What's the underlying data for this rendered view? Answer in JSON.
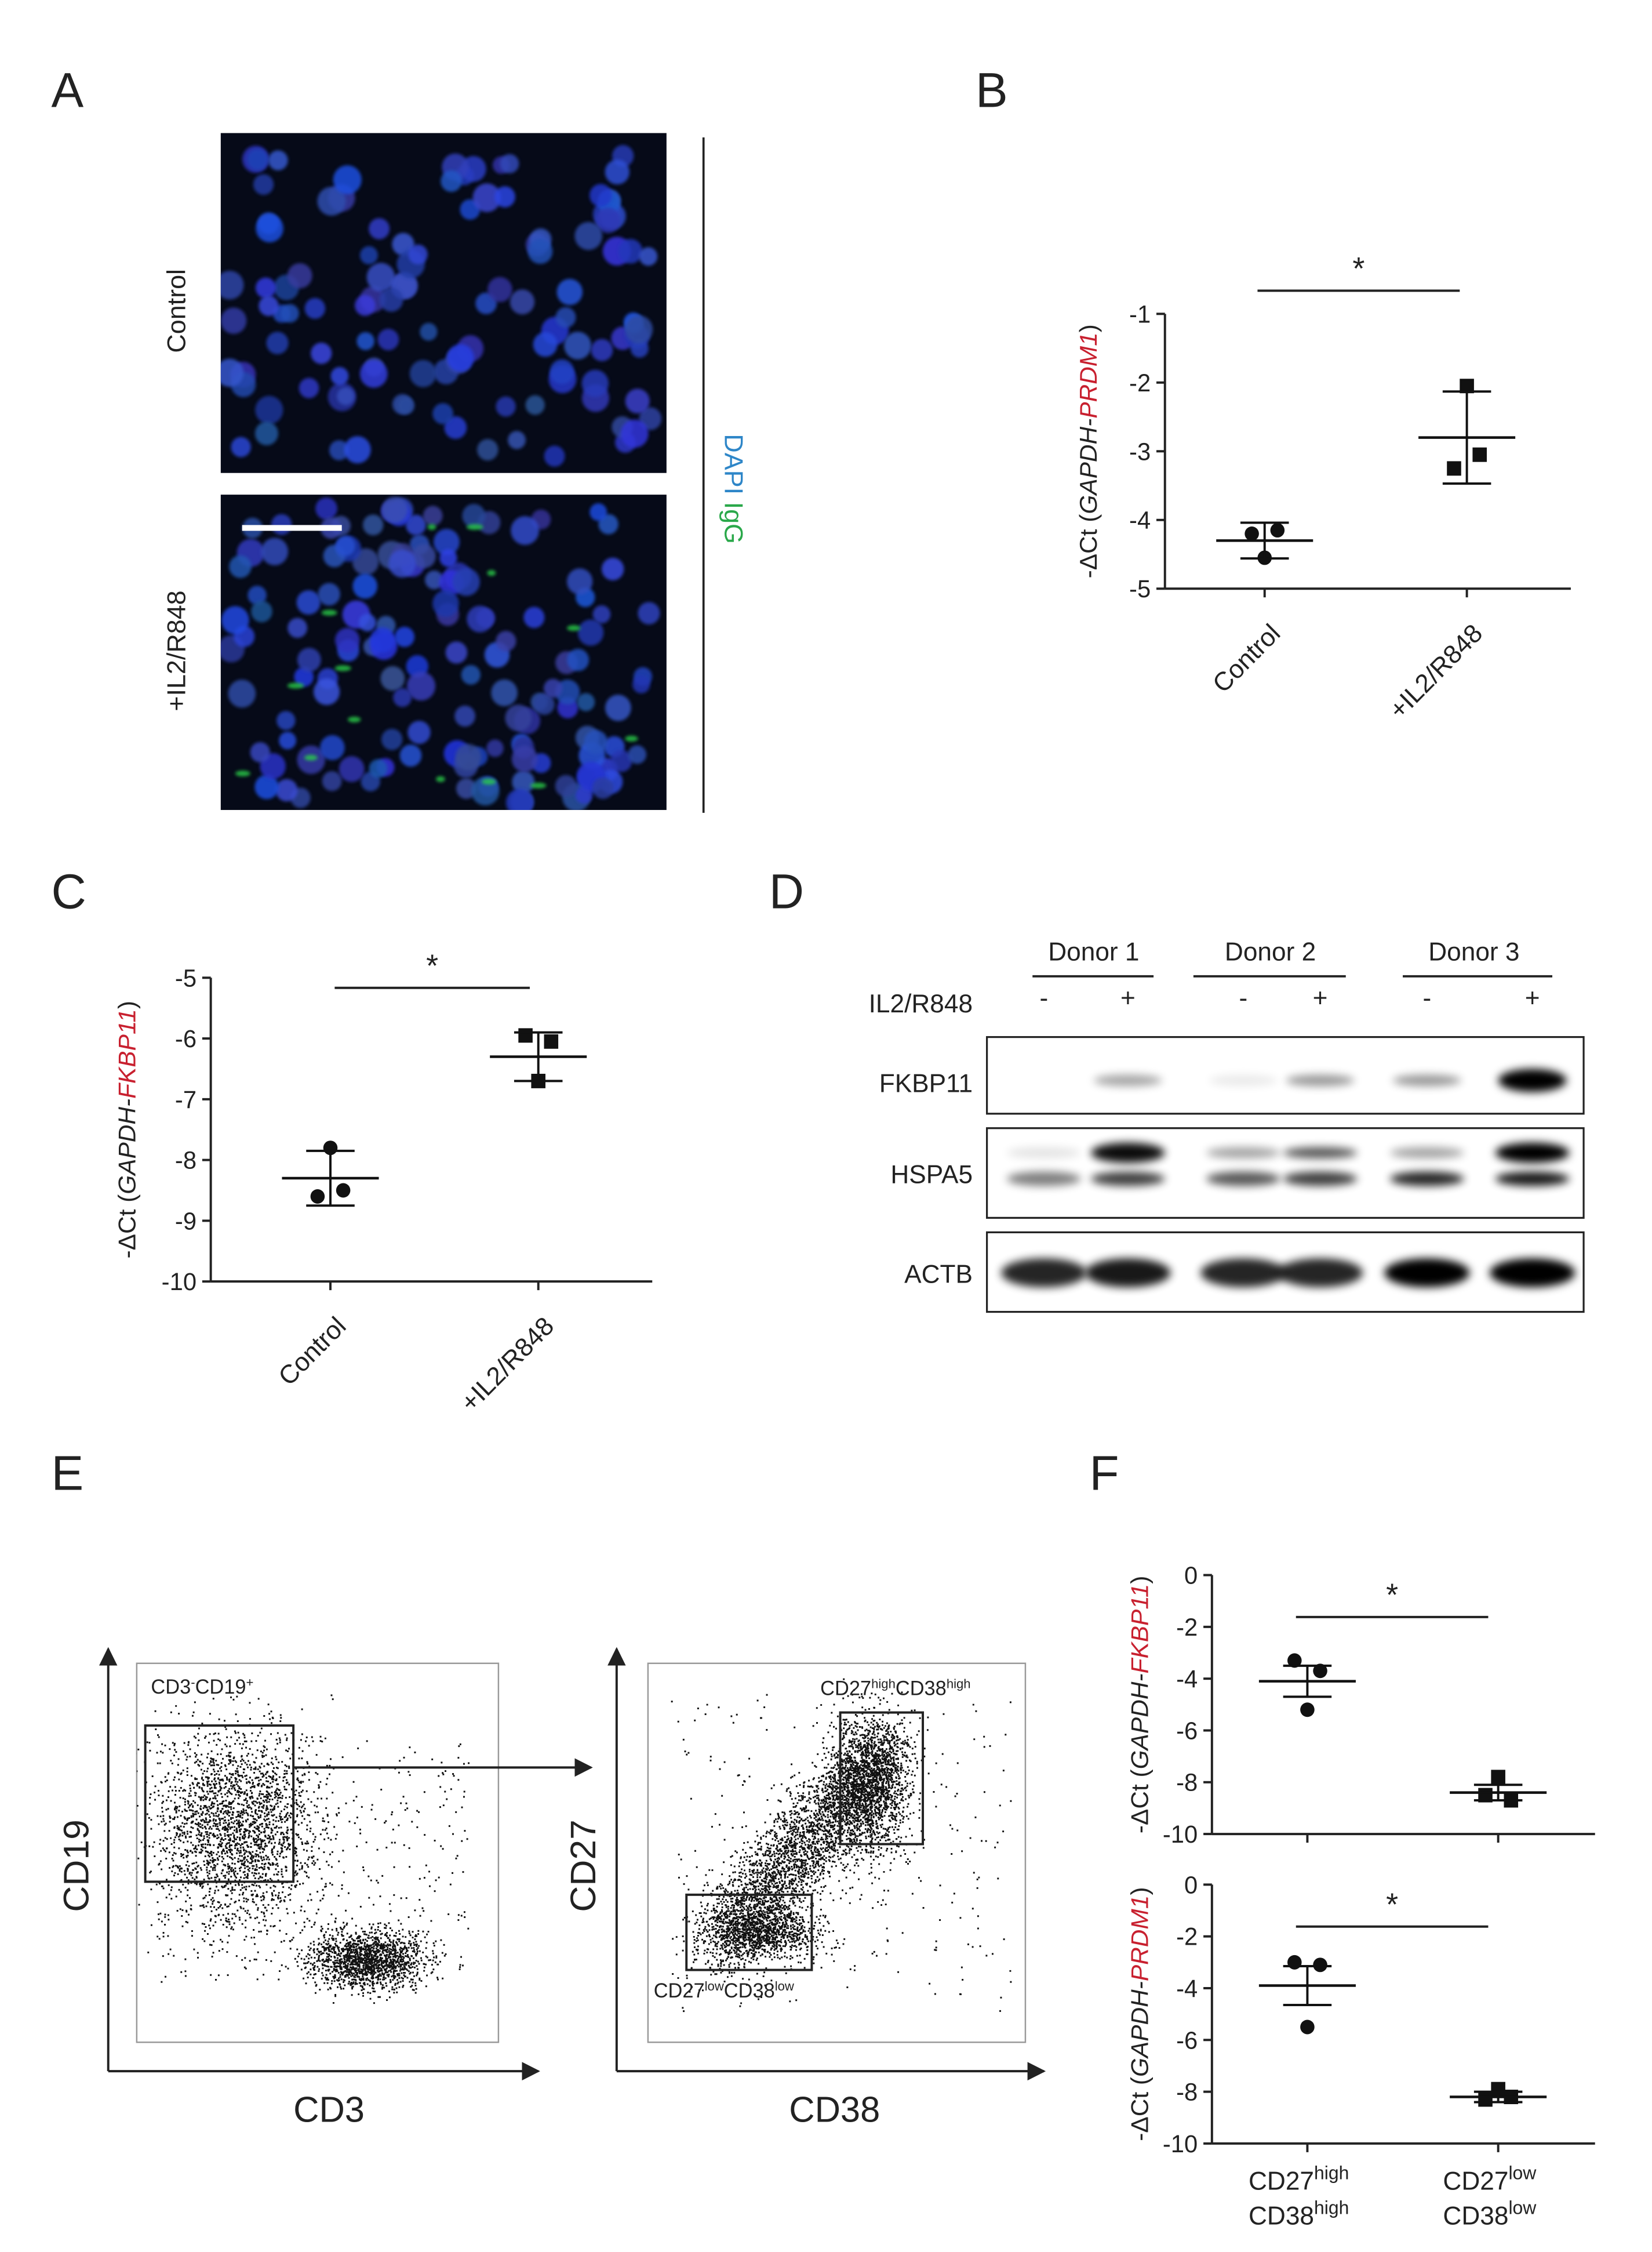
{
  "panel_letters": [
    "A",
    "B",
    "C",
    "D",
    "E",
    "F"
  ],
  "panel_a": {
    "conditions": [
      "Control",
      "+IL2/R848"
    ],
    "stain_labels": [
      "DAPI",
      "IgG"
    ]
  },
  "panel_d": {
    "donors": [
      "Donor 1",
      "Donor 2",
      "Donor 3"
    ],
    "treatment": "IL2/R848",
    "treatment_marks": [
      "-",
      "+",
      "-",
      "+",
      "-",
      "+"
    ],
    "proteins": [
      "FKBP11",
      "HSPA5",
      "ACTB"
    ]
  },
  "panel_e": {
    "x_labels": [
      "CD3",
      "CD38"
    ],
    "y_labels": [
      "CD19",
      "CD27"
    ],
    "gates": [
      [
        "CD3",
        "-",
        "CD19",
        "+"
      ],
      [
        "CD27",
        "high",
        "CD38",
        "high"
      ],
      [
        "CD27",
        "low",
        "CD38",
        "low"
      ]
    ]
  },
  "chart_data": [
    {
      "type": "dot",
      "annotation": "*",
      "ylabel": {
        "prefix": "-ΔCt (",
        "gene1": "GAPDH-",
        "gene2": "PRDM1",
        "suffix": ")"
      },
      "categories": [
        "Control",
        "+IL2/R848"
      ],
      "points": [
        [
          -4.2,
          -4.15,
          -4.55
        ],
        [
          -3.25,
          -3.05,
          -2.05
        ]
      ],
      "means": [
        -4.3,
        -2.8
      ],
      "errors": [
        0.26,
        0.67
      ],
      "markers": [
        "circle",
        "square"
      ],
      "ylim": [
        -5,
        -1
      ],
      "yticks": [
        -1,
        -2,
        -3,
        -4,
        -5
      ]
    },
    {
      "type": "dot",
      "annotation": "*",
      "ylabel": {
        "prefix": "-ΔCt (",
        "gene1": "GAPDH-",
        "gene2": "FKBP11",
        "suffix": ")"
      },
      "categories": [
        "Control",
        "+IL2/R848"
      ],
      "points": [
        [
          -8.6,
          -8.5,
          -7.8
        ],
        [
          -5.95,
          -6.05,
          -6.7
        ]
      ],
      "means": [
        -8.3,
        -6.3
      ],
      "errors": [
        0.45,
        0.4
      ],
      "markers": [
        "circle",
        "square"
      ],
      "ylim": [
        -10,
        -5
      ],
      "yticks": [
        -5,
        -6,
        -7,
        -8,
        -9,
        -10
      ]
    },
    {
      "type": "dot",
      "annotation": "*",
      "ylabel": {
        "prefix": "-ΔCt (",
        "gene1": "GAPDH-",
        "gene2": "FKBP11",
        "suffix": ")"
      },
      "points": [
        [
          -3.3,
          -3.7,
          -5.2
        ],
        [
          -8.5,
          -8.7,
          -7.8
        ]
      ],
      "means": [
        -4.1,
        -8.4
      ],
      "errors": [
        0.6,
        0.3
      ],
      "markers": [
        "circle",
        "square"
      ],
      "ylim": [
        -10,
        0
      ],
      "yticks": [
        0,
        -2,
        -4,
        -6,
        -8,
        -10
      ]
    },
    {
      "type": "dot",
      "annotation": "*",
      "ylabel": {
        "prefix": "-ΔCt (",
        "gene1": "GAPDH-",
        "gene2": "PRDM1",
        "suffix": ")"
      },
      "categories": [
        [
          [
            "CD27",
            "high"
          ],
          [
            "CD38",
            "high"
          ]
        ],
        [
          [
            "CD27",
            "low"
          ],
          [
            "CD38",
            "low"
          ]
        ]
      ],
      "points": [
        [
          -3.0,
          -3.1,
          -5.5
        ],
        [
          -8.3,
          -8.2,
          -7.9
        ]
      ],
      "means": [
        -3.9,
        -8.2
      ],
      "errors": [
        0.75,
        0.2
      ],
      "markers": [
        "circle",
        "square"
      ],
      "ylim": [
        -10,
        0
      ],
      "yticks": [
        0,
        -2,
        -4,
        -6,
        -8,
        -10
      ]
    }
  ]
}
